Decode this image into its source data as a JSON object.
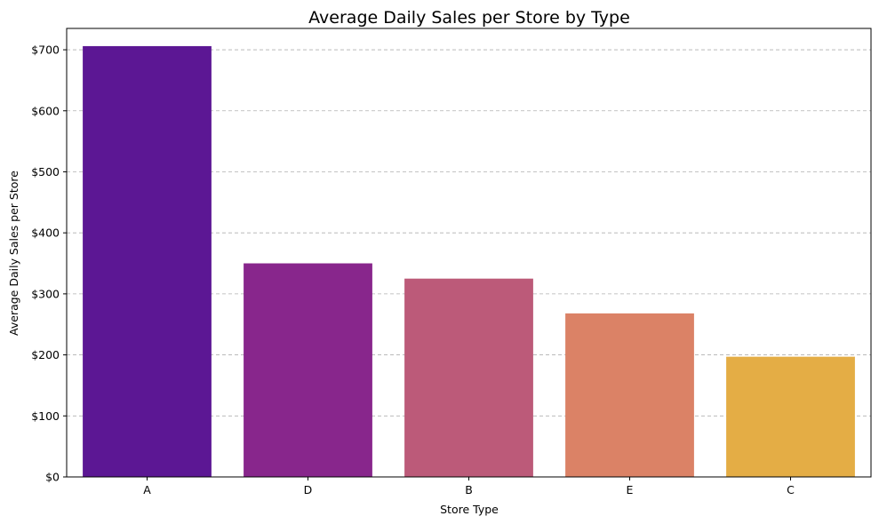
{
  "chart_data": {
    "type": "bar",
    "title": "Average Daily Sales per Store by Type",
    "xlabel": "Store Type",
    "ylabel": "Average Daily Sales per Store",
    "categories": [
      "A",
      "D",
      "B",
      "E",
      "C"
    ],
    "values": [
      706,
      350,
      325,
      268,
      197
    ],
    "colors": [
      "#5c1794",
      "#88268c",
      "#bc5a79",
      "#db8266",
      "#e4ad45"
    ],
    "ylim": [
      0,
      735
    ],
    "yticks": [
      0,
      100,
      200,
      300,
      400,
      500,
      600,
      700
    ],
    "ytick_labels": [
      "$0",
      "$100",
      "$200",
      "$300",
      "$400",
      "$500",
      "$600",
      "$700"
    ],
    "grid": "y-dashed",
    "legend": "none"
  }
}
